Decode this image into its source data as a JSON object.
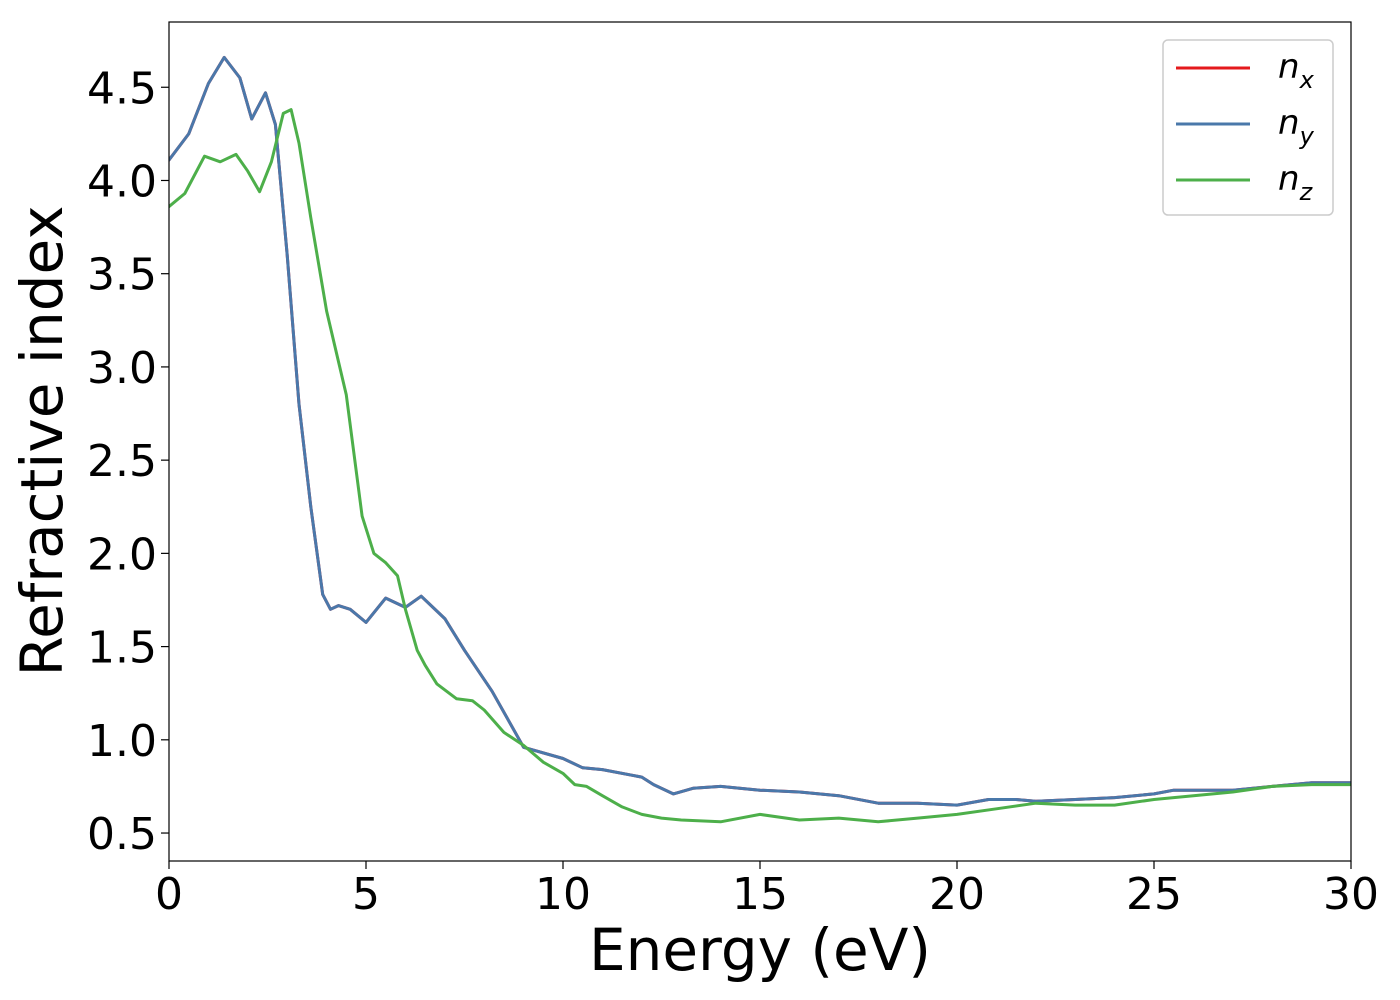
{
  "chart_data": {
    "type": "line",
    "title": "",
    "xlabel": "Energy (eV)",
    "ylabel": "Refractive index",
    "xlim": [
      0,
      30
    ],
    "ylim": [
      0.35,
      4.85
    ],
    "xticks": [
      0,
      5,
      10,
      15,
      20,
      25,
      30
    ],
    "xtick_labels": [
      "0",
      "5",
      "10",
      "15",
      "20",
      "25",
      "30"
    ],
    "yticks": [
      0.5,
      1.0,
      1.5,
      2.0,
      2.5,
      3.0,
      3.5,
      4.0,
      4.5
    ],
    "ytick_labels": [
      "0.5",
      "1.0",
      "1.5",
      "2.0",
      "2.5",
      "3.0",
      "3.5",
      "4.0",
      "4.5"
    ],
    "grid": false,
    "legend_position": "top-right",
    "series": [
      {
        "name": "n_x",
        "legend_base": "n",
        "legend_sub": "x",
        "color": "#e41a1c",
        "x": [
          0,
          0.5,
          1.0,
          1.4,
          1.8,
          2.1,
          2.45,
          2.7,
          3.0,
          3.3,
          3.6,
          3.9,
          4.1,
          4.3,
          4.6,
          5.0,
          5.5,
          6.0,
          6.4,
          7.0,
          7.5,
          8.2,
          9.0,
          10.0,
          10.5,
          11.0,
          12.0,
          12.3,
          12.8,
          13.3,
          14.0,
          15.0,
          16.0,
          17.0,
          18.0,
          19.0,
          20.0,
          20.8,
          21.5,
          22.0,
          23.0,
          24.0,
          25.0,
          25.5,
          26.0,
          27.0,
          28.0,
          29.0,
          30.0
        ],
        "values": [
          4.11,
          4.25,
          4.52,
          4.66,
          4.55,
          4.33,
          4.47,
          4.3,
          3.6,
          2.8,
          2.25,
          1.78,
          1.7,
          1.72,
          1.7,
          1.63,
          1.76,
          1.71,
          1.77,
          1.65,
          1.48,
          1.26,
          0.96,
          0.9,
          0.85,
          0.84,
          0.8,
          0.76,
          0.71,
          0.74,
          0.75,
          0.73,
          0.72,
          0.7,
          0.66,
          0.66,
          0.65,
          0.68,
          0.68,
          0.67,
          0.68,
          0.69,
          0.71,
          0.73,
          0.73,
          0.73,
          0.75,
          0.77,
          0.77
        ]
      },
      {
        "name": "n_y",
        "legend_base": "n",
        "legend_sub": "y",
        "color": "#4a78aa",
        "x": [
          0,
          0.5,
          1.0,
          1.4,
          1.8,
          2.1,
          2.45,
          2.7,
          3.0,
          3.3,
          3.6,
          3.9,
          4.1,
          4.3,
          4.6,
          5.0,
          5.5,
          6.0,
          6.4,
          7.0,
          7.5,
          8.2,
          9.0,
          10.0,
          10.5,
          11.0,
          12.0,
          12.3,
          12.8,
          13.3,
          14.0,
          15.0,
          16.0,
          17.0,
          18.0,
          19.0,
          20.0,
          20.8,
          21.5,
          22.0,
          23.0,
          24.0,
          25.0,
          25.5,
          26.0,
          27.0,
          28.0,
          29.0,
          30.0
        ],
        "values": [
          4.11,
          4.25,
          4.52,
          4.66,
          4.55,
          4.33,
          4.47,
          4.3,
          3.6,
          2.8,
          2.25,
          1.78,
          1.7,
          1.72,
          1.7,
          1.63,
          1.76,
          1.71,
          1.77,
          1.65,
          1.48,
          1.26,
          0.96,
          0.9,
          0.85,
          0.84,
          0.8,
          0.76,
          0.71,
          0.74,
          0.75,
          0.73,
          0.72,
          0.7,
          0.66,
          0.66,
          0.65,
          0.68,
          0.68,
          0.67,
          0.68,
          0.69,
          0.71,
          0.73,
          0.73,
          0.73,
          0.75,
          0.77,
          0.77
        ]
      },
      {
        "name": "n_z",
        "legend_base": "n",
        "legend_sub": "z",
        "color": "#4daf4a",
        "x": [
          0,
          0.4,
          0.9,
          1.3,
          1.7,
          2.0,
          2.3,
          2.6,
          2.9,
          3.1,
          3.3,
          3.6,
          4.0,
          4.5,
          4.9,
          5.2,
          5.5,
          5.8,
          6.0,
          6.3,
          6.5,
          6.8,
          7.3,
          7.7,
          8.0,
          8.5,
          9.0,
          9.5,
          10.0,
          10.3,
          10.6,
          11.0,
          11.5,
          12.0,
          12.5,
          13.0,
          14.0,
          15.0,
          16.0,
          17.0,
          18.0,
          19.0,
          20.0,
          21.0,
          22.0,
          23.0,
          24.0,
          25.0,
          26.0,
          27.0,
          28.0,
          29.0,
          30.0
        ],
        "values": [
          3.86,
          3.93,
          4.13,
          4.1,
          4.14,
          4.05,
          3.94,
          4.1,
          4.36,
          4.38,
          4.2,
          3.8,
          3.3,
          2.85,
          2.2,
          2.0,
          1.95,
          1.88,
          1.7,
          1.48,
          1.4,
          1.3,
          1.22,
          1.21,
          1.16,
          1.04,
          0.97,
          0.88,
          0.82,
          0.76,
          0.75,
          0.7,
          0.64,
          0.6,
          0.58,
          0.57,
          0.56,
          0.6,
          0.57,
          0.58,
          0.56,
          0.58,
          0.6,
          0.63,
          0.66,
          0.65,
          0.65,
          0.68,
          0.7,
          0.72,
          0.75,
          0.76,
          0.76
        ]
      }
    ]
  }
}
